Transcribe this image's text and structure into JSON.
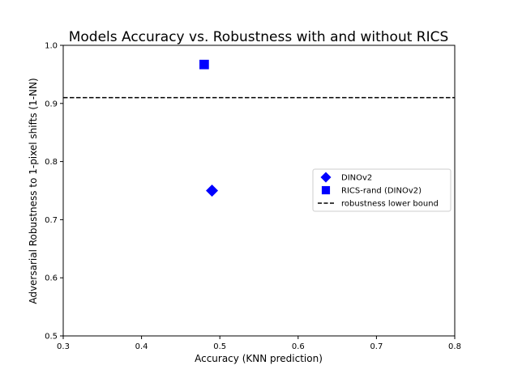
{
  "chart_data": {
    "type": "scatter",
    "title": "Models Accuracy vs. Robustness with and without RICS",
    "xlabel": "Accuracy (KNN prediction)",
    "ylabel": "Adversarial Robustness to 1-pixel shifts (1-NN)",
    "xlim": [
      0.3,
      0.8
    ],
    "ylim": [
      0.5,
      1.0
    ],
    "xticks": [
      0.3,
      0.4,
      0.5,
      0.6,
      0.7,
      0.8
    ],
    "yticks": [
      0.5,
      0.6,
      0.7,
      0.8,
      0.9,
      1.0
    ],
    "xtick_labels": [
      "0.3",
      "0.4",
      "0.5",
      "0.6",
      "0.7",
      "0.8"
    ],
    "ytick_labels": [
      "0.5",
      "0.6",
      "0.7",
      "0.8",
      "0.9",
      "1.0"
    ],
    "grid": false,
    "legend_position": "center-right",
    "series": [
      {
        "name": "DINOv2",
        "marker": "diamond",
        "color": "#0000ff",
        "points": [
          {
            "x": 0.49,
            "y": 0.75
          }
        ]
      },
      {
        "name": "RICS-rand (DINOv2)",
        "marker": "square",
        "color": "#0000ff",
        "points": [
          {
            "x": 0.48,
            "y": 0.967
          }
        ]
      }
    ],
    "reference_lines": [
      {
        "name": "robustness lower bound",
        "orientation": "horizontal",
        "y": 0.91,
        "style": "dashed",
        "color": "#000000"
      }
    ]
  }
}
